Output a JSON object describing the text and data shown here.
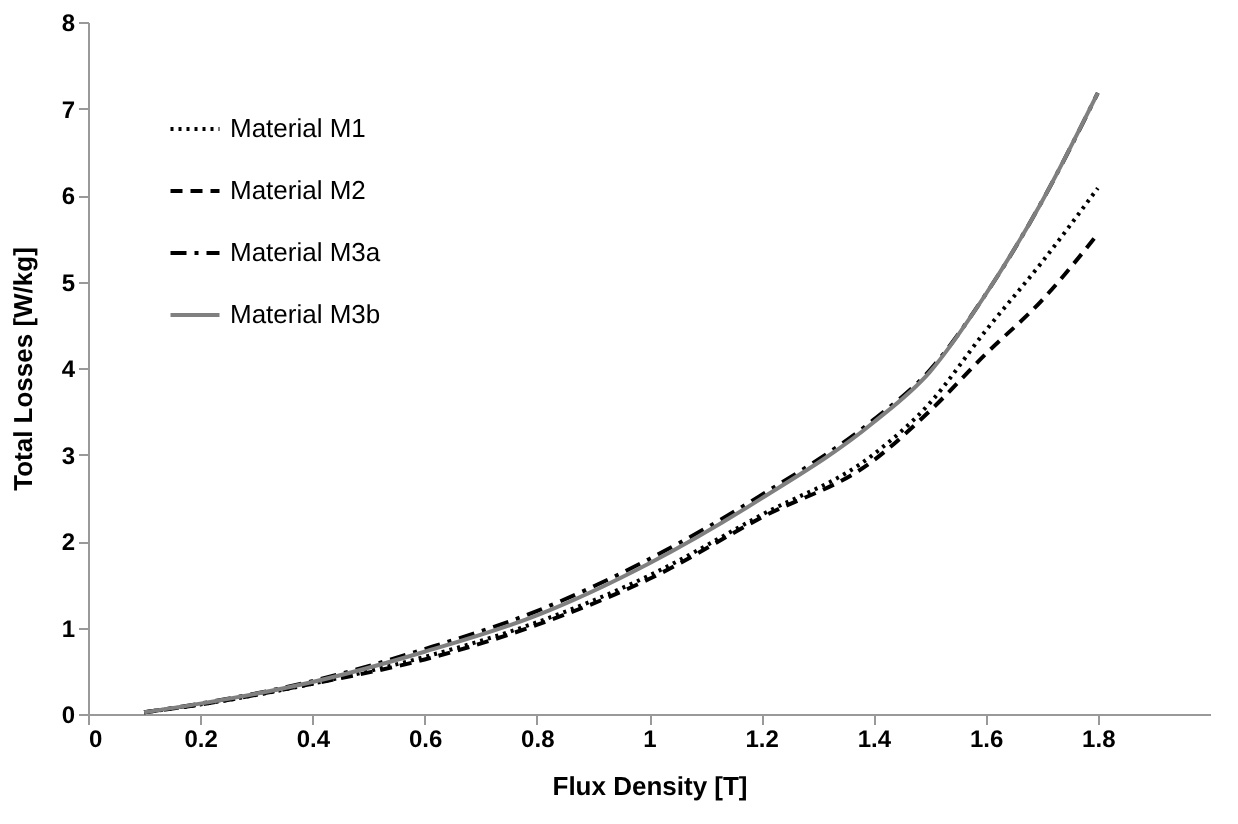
{
  "chart_data": {
    "type": "line",
    "xlabel": "Flux Density [T]",
    "ylabel": "Total Losses [W/kg]",
    "x": [
      0.1,
      0.2,
      0.4,
      0.6,
      0.8,
      1.0,
      1.2,
      1.4,
      1.5,
      1.6,
      1.7,
      1.8
    ],
    "xlim": [
      0,
      2
    ],
    "xticks": [
      0,
      0.2,
      0.4,
      0.6,
      0.8,
      1,
      1.2,
      1.4,
      1.6,
      1.8
    ],
    "ylim": [
      0,
      8
    ],
    "yticks": [
      0,
      1,
      2,
      3,
      4,
      5,
      6,
      7,
      8
    ],
    "grid": false,
    "legend": "top left",
    "marker": "none",
    "series": [
      {
        "name": "Material M1",
        "color": "#000000",
        "line_style": "dotted",
        "values": [
          0.02,
          0.11,
          0.35,
          0.66,
          1.06,
          1.6,
          2.3,
          3.0,
          3.59,
          4.43,
          5.22,
          6.08
        ]
      },
      {
        "name": "Material M2",
        "color": "#000000",
        "line_style": "dashed",
        "values": [
          0.02,
          0.11,
          0.35,
          0.63,
          1.03,
          1.56,
          2.27,
          2.93,
          3.5,
          4.16,
          4.78,
          5.55
        ]
      },
      {
        "name": "Material M3a",
        "color": "#000000",
        "line_style": "dashdot",
        "values": [
          0.02,
          0.12,
          0.38,
          0.75,
          1.19,
          1.79,
          2.53,
          3.4,
          3.97,
          4.85,
          5.92,
          7.18
        ]
      },
      {
        "name": "Material M3b",
        "color": "#808080",
        "line_style": "solid",
        "values": [
          0.02,
          0.12,
          0.37,
          0.72,
          1.14,
          1.74,
          2.49,
          3.37,
          3.95,
          4.85,
          5.92,
          7.18
        ]
      }
    ]
  }
}
